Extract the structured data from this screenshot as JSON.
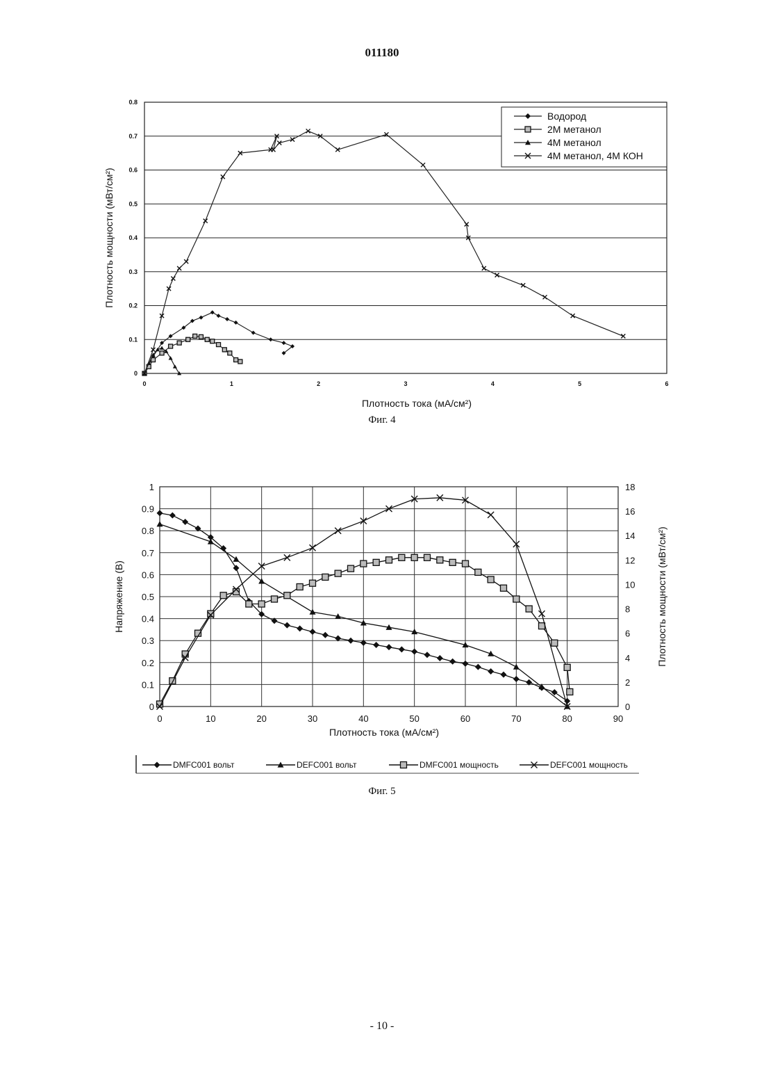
{
  "page": {
    "doc_number": "011180",
    "page_number": "- 10 -"
  },
  "chart_data": [
    {
      "type": "line",
      "caption": "Фиг. 4",
      "xlabel": "Плотность тока (мА/см²)",
      "ylabel": "Плотность мощности (мВт/см²)",
      "xlim": [
        0,
        6
      ],
      "ylim": [
        0,
        0.8
      ],
      "x_ticks": [
        "0",
        "1",
        "2",
        "3",
        "4",
        "5",
        "6"
      ],
      "y_ticks": [
        "0",
        "0.1",
        "0.2",
        "0.3",
        "0.4",
        "0.5",
        "0.6",
        "0.7",
        "0.8"
      ],
      "grid": "horizontal",
      "legend_position": "top-right",
      "series": [
        {
          "name": "Водород",
          "marker": "diamond",
          "x": [
            0,
            0.1,
            0.2,
            0.3,
            0.45,
            0.55,
            0.65,
            0.78,
            0.85,
            0.95,
            1.05,
            1.25,
            1.45,
            1.6,
            1.7,
            1.6
          ],
          "y": [
            0,
            0.05,
            0.09,
            0.11,
            0.135,
            0.155,
            0.165,
            0.18,
            0.17,
            0.16,
            0.15,
            0.12,
            0.1,
            0.09,
            0.08,
            0.06
          ]
        },
        {
          "name": "2M метанол",
          "marker": "square",
          "x": [
            0,
            0.05,
            0.1,
            0.2,
            0.3,
            0.4,
            0.5,
            0.58,
            0.65,
            0.72,
            0.78,
            0.85,
            0.92,
            0.98,
            1.05,
            1.1
          ],
          "y": [
            0,
            0.02,
            0.04,
            0.06,
            0.08,
            0.09,
            0.1,
            0.11,
            0.108,
            0.1,
            0.095,
            0.085,
            0.07,
            0.06,
            0.04,
            0.035
          ]
        },
        {
          "name": "4M метанол",
          "marker": "triangle",
          "x": [
            0,
            0.05,
            0.1,
            0.15,
            0.2,
            0.25,
            0.3,
            0.35,
            0.4
          ],
          "y": [
            0,
            0.03,
            0.055,
            0.07,
            0.075,
            0.065,
            0.045,
            0.02,
            0
          ]
        },
        {
          "name": "4M метанол, 4M КОН",
          "marker": "x",
          "x": [
            0,
            0.1,
            0.2,
            0.28,
            0.33,
            0.4,
            0.48,
            0.7,
            0.9,
            1.1,
            1.45,
            1.52,
            1.48,
            1.55,
            1.7,
            1.88,
            2.02,
            2.22,
            2.78,
            3.2,
            3.7,
            3.72,
            3.9,
            4.05,
            4.35,
            4.6,
            4.92,
            5.5
          ],
          "y": [
            0,
            0.07,
            0.17,
            0.25,
            0.28,
            0.31,
            0.33,
            0.45,
            0.58,
            0.65,
            0.66,
            0.7,
            0.66,
            0.68,
            0.69,
            0.715,
            0.7,
            0.66,
            0.705,
            0.615,
            0.44,
            0.4,
            0.31,
            0.29,
            0.26,
            0.225,
            0.17,
            0.11
          ]
        }
      ]
    },
    {
      "type": "line",
      "caption": "Фиг. 5",
      "xlabel": "Плотность тока (мА/см²)",
      "ylabel_left": "Напряжение (В)",
      "ylabel_right": "Плотность мощности (мВт/см²)",
      "xlim": [
        0,
        90
      ],
      "ylim_left": [
        0,
        1
      ],
      "ylim_right": [
        0,
        18
      ],
      "x_ticks": [
        "0",
        "10",
        "20",
        "30",
        "40",
        "50",
        "60",
        "70",
        "80",
        "90"
      ],
      "y_ticks_left": [
        "0",
        "0.1",
        "0.2",
        "0.3",
        "0.4",
        "0.5",
        "0.6",
        "0.7",
        "0.8",
        "0.9",
        "1"
      ],
      "y_ticks_right": [
        "0",
        "2",
        "4",
        "6",
        "8",
        "10",
        "12",
        "14",
        "16",
        "18"
      ],
      "grid": "both",
      "legend_position": "bottom",
      "series": [
        {
          "name": "DMFC001 вольт",
          "marker": "diamond",
          "axis": "left",
          "x": [
            0,
            2.5,
            5,
            7.5,
            10,
            12.5,
            15,
            17.5,
            20,
            22.5,
            25,
            27.5,
            30,
            32.5,
            35,
            37.5,
            40,
            42.5,
            45,
            47.5,
            50,
            52.5,
            55,
            57.5,
            60,
            62.5,
            65,
            67.5,
            70,
            72.5,
            75,
            77.5,
            80
          ],
          "y": [
            0.88,
            0.87,
            0.84,
            0.81,
            0.77,
            0.72,
            0.63,
            0.48,
            0.42,
            0.39,
            0.37,
            0.355,
            0.34,
            0.325,
            0.31,
            0.3,
            0.29,
            0.28,
            0.27,
            0.26,
            0.25,
            0.235,
            0.22,
            0.205,
            0.195,
            0.18,
            0.16,
            0.145,
            0.125,
            0.11,
            0.085,
            0.065,
            0.025
          ]
        },
        {
          "name": "DEFC001 вольт",
          "marker": "triangle",
          "axis": "left",
          "x": [
            0,
            10,
            15,
            20,
            30,
            35,
            40,
            45,
            50,
            60,
            65,
            70,
            75,
            80
          ],
          "y": [
            0.83,
            0.75,
            0.67,
            0.57,
            0.43,
            0.41,
            0.38,
            0.36,
            0.34,
            0.28,
            0.24,
            0.18,
            0.09,
            0
          ]
        },
        {
          "name": "DMFC001 мощность",
          "marker": "square",
          "axis": "right",
          "x": [
            0,
            2.5,
            5,
            7.5,
            10,
            12.5,
            15,
            17.5,
            20,
            22.5,
            25,
            27.5,
            30,
            32.5,
            35,
            37.5,
            40,
            42.5,
            45,
            47.5,
            50,
            52.5,
            55,
            57.5,
            60,
            62.5,
            65,
            67.5,
            70,
            72.5,
            75,
            77.5,
            80,
            80.5
          ],
          "y": [
            0.2,
            2.1,
            4.3,
            6,
            7.6,
            9.1,
            9.4,
            8.4,
            8.4,
            8.8,
            9.1,
            9.8,
            10.1,
            10.6,
            10.9,
            11.3,
            11.7,
            11.8,
            12,
            12.2,
            12.2,
            12.2,
            12,
            11.8,
            11.7,
            11,
            10.4,
            9.7,
            8.8,
            8,
            6.6,
            5.2,
            3.2,
            1.2
          ]
        },
        {
          "name": "DEFC001 мощность",
          "marker": "x",
          "axis": "right",
          "x": [
            0,
            5,
            10,
            15,
            20,
            25,
            30,
            35,
            40,
            45,
            50,
            55,
            60,
            65,
            70,
            75,
            80
          ],
          "y": [
            0,
            4,
            7.5,
            9.6,
            11.5,
            12.2,
            13,
            14.4,
            15.2,
            16.2,
            17,
            17.1,
            16.9,
            15.7,
            13.3,
            7.6,
            0
          ]
        }
      ]
    }
  ]
}
